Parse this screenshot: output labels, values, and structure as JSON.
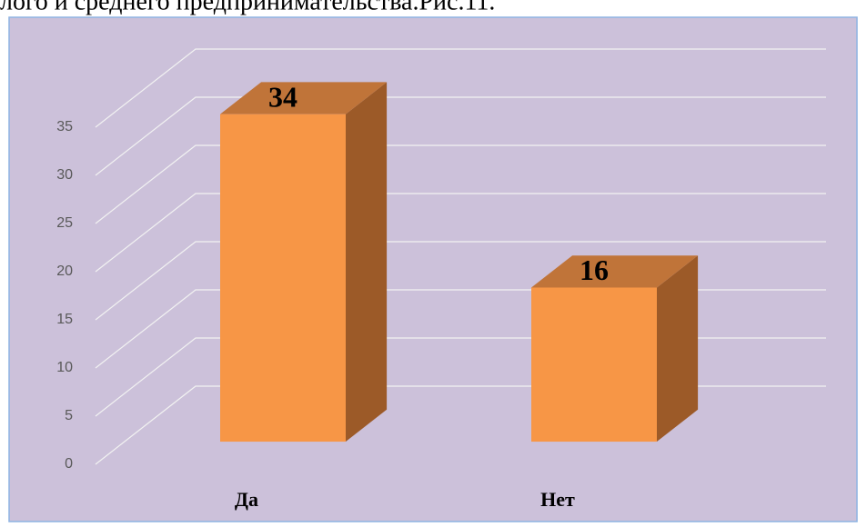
{
  "caption": "лого и среднего предпринимательства.Рис.11.",
  "chart_data": {
    "type": "bar3d",
    "categories": [
      "Да",
      "Нет"
    ],
    "values": [
      34,
      16
    ],
    "color": "#f79646",
    "ylim": [
      0,
      35
    ],
    "yticks": [
      0,
      5,
      10,
      15,
      20,
      25,
      30,
      35
    ],
    "grid": true
  }
}
